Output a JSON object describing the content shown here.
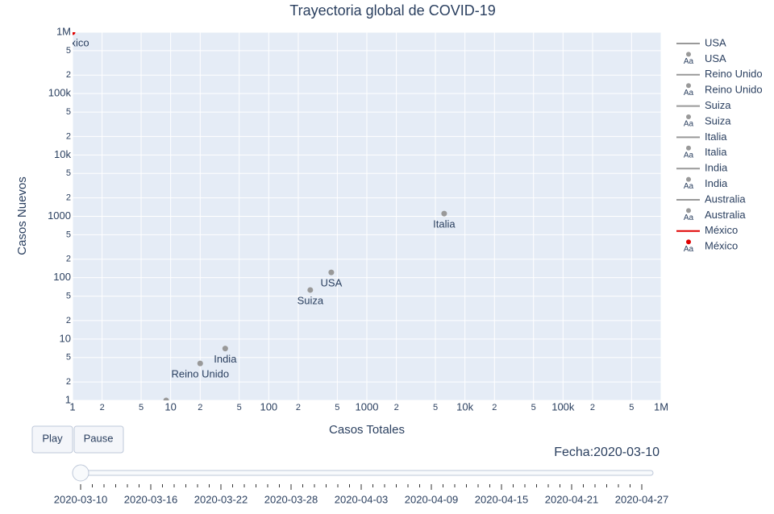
{
  "chart_data": {
    "type": "scatter",
    "title": "Trayectoria global de COVID-19",
    "x_label": "Casos Totales",
    "y_label": "Casos Nuevos",
    "log_x": true,
    "log_y": true,
    "grid": true,
    "xlim": [
      1,
      1000000
    ],
    "ylim": [
      1,
      1000000
    ],
    "xticks": [
      1,
      {
        "value": 2,
        "label": "2"
      },
      {
        "value": 5,
        "label": "5"
      },
      10,
      {
        "value": 20,
        "label": "2"
      },
      {
        "value": 50,
        "label": "5"
      },
      100,
      {
        "value": 200,
        "label": "2"
      },
      {
        "value": 500,
        "label": "5"
      },
      1000,
      {
        "value": 2000,
        "label": "2"
      },
      {
        "value": 5000,
        "label": "5"
      },
      {
        "value": 10000,
        "label": "10k"
      },
      {
        "value": 20000,
        "label": "2"
      },
      {
        "value": 50000,
        "label": "5"
      },
      {
        "value": 100000,
        "label": "100k"
      },
      {
        "value": 200000,
        "label": "2"
      },
      {
        "value": 500000,
        "label": "5"
      },
      {
        "value": 1000000,
        "label": "1M"
      }
    ],
    "yticks": [
      1,
      {
        "value": 2,
        "label": "2"
      },
      {
        "value": 5,
        "label": "5"
      },
      10,
      {
        "value": 20,
        "label": "2"
      },
      {
        "value": 50,
        "label": "5"
      },
      100,
      {
        "value": 200,
        "label": "2"
      },
      {
        "value": 500,
        "label": "5"
      },
      1000,
      {
        "value": 2000,
        "label": "2"
      },
      {
        "value": 5000,
        "label": "5"
      },
      {
        "value": 10000,
        "label": "10k"
      },
      {
        "value": 20000,
        "label": "2"
      },
      {
        "value": 50000,
        "label": "5"
      },
      {
        "value": 100000,
        "label": "100k"
      },
      {
        "value": 200000,
        "label": "2"
      },
      {
        "value": 500000,
        "label": "5"
      },
      {
        "value": 1000000,
        "label": "1M"
      }
    ],
    "legend_text_icon": "Aa",
    "series": [
      {
        "name": "USA",
        "color": "#999999",
        "x": [
          434
        ],
        "values": [
          122
        ]
      },
      {
        "name": "Reino Unido",
        "color": "#999999",
        "x": [
          20
        ],
        "values": [
          4
        ]
      },
      {
        "name": "Suiza",
        "color": "#999999",
        "x": [
          265
        ],
        "values": [
          63
        ]
      },
      {
        "name": "Italia",
        "color": "#999999",
        "x": [
          6140
        ],
        "values": [
          1108
        ]
      },
      {
        "name": "India",
        "color": "#999999",
        "x": [
          36
        ],
        "values": [
          7
        ]
      },
      {
        "name": "Australia",
        "color": "#999999",
        "x": [
          9
        ],
        "values": [
          1
        ]
      },
      {
        "name": "México",
        "color": "#e00000",
        "x": [
          1
        ],
        "values": [
          1000000
        ]
      }
    ],
    "buttons": [
      "Play",
      "Pause"
    ],
    "slider": {
      "prefix": "Fecha:",
      "current": "2020-03-10",
      "labels": [
        "2020-03-10",
        "2020-03-16",
        "2020-03-22",
        "2020-03-28",
        "2020-04-03",
        "2020-04-09",
        "2020-04-15",
        "2020-04-21",
        "2020-04-27"
      ]
    }
  }
}
